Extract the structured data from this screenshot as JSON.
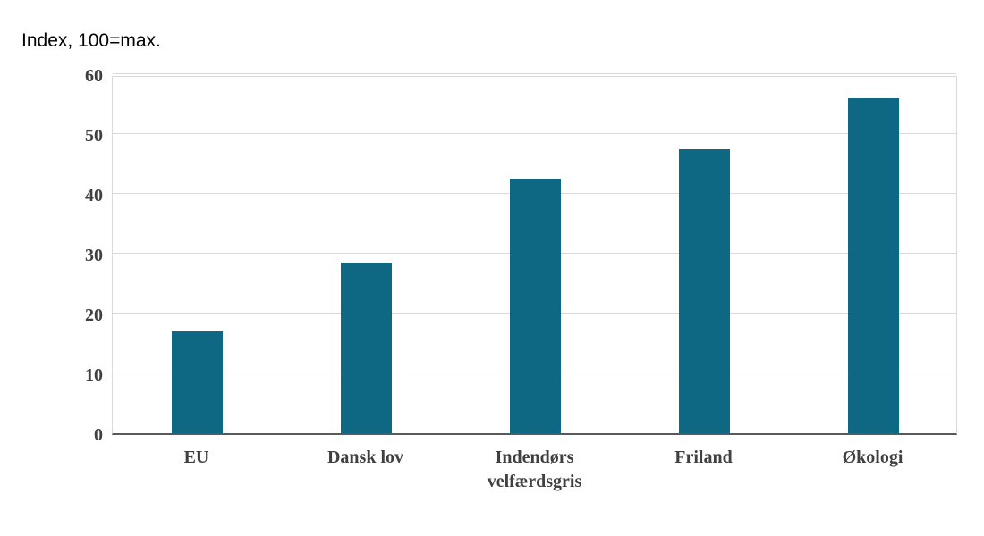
{
  "chart_data": {
    "type": "bar",
    "title": "Index, 100=max.",
    "categories": [
      "EU",
      "Dansk lov",
      "Indendørs velfærdsgris",
      "Friland",
      "Økologi"
    ],
    "values": [
      17,
      28.5,
      42.5,
      47.5,
      56
    ],
    "xlabel": "",
    "ylabel": "Index, 100=max.",
    "ylim": [
      0,
      60
    ],
    "ytick_step": 10,
    "legend_position": "none",
    "grid": "horizontal",
    "colors": {
      "bar": "#0e6884",
      "gridline": "#d9d9d9",
      "axis_line": "#595959",
      "tick_label": "#404040",
      "background": "#ffffff"
    }
  }
}
